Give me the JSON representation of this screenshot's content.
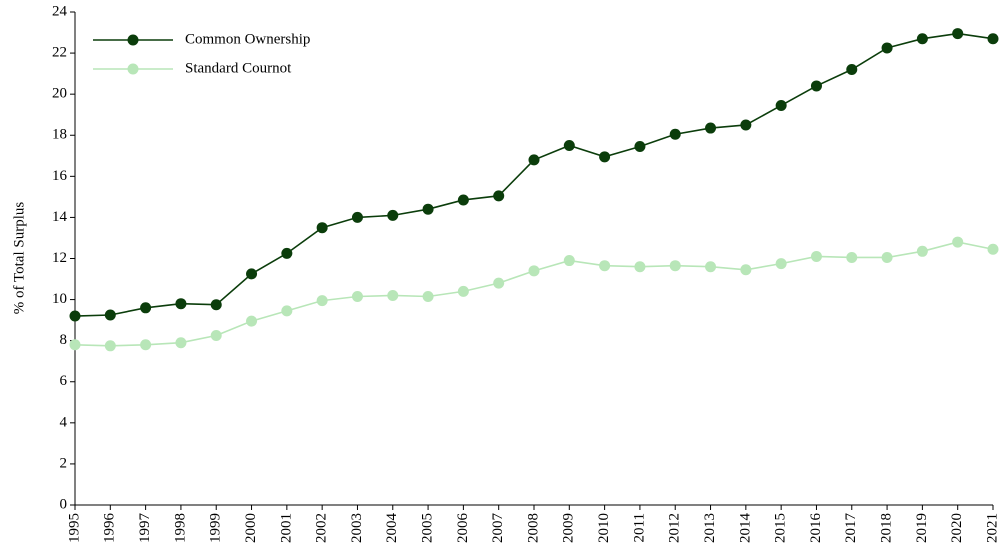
{
  "chart_data": {
    "type": "line",
    "ylabel": "% of Total Surplus",
    "x": [
      1995,
      1996,
      1997,
      1998,
      1999,
      2000,
      2001,
      2002,
      2003,
      2004,
      2005,
      2006,
      2007,
      2008,
      2009,
      2010,
      2011,
      2012,
      2013,
      2014,
      2015,
      2016,
      2017,
      2018,
      2019,
      2020,
      2021
    ],
    "series": [
      {
        "name": "Common Ownership",
        "color": "#0b3d0b",
        "values": [
          9.2,
          9.25,
          9.6,
          9.8,
          9.75,
          11.25,
          12.25,
          13.5,
          14.0,
          14.1,
          14.4,
          14.85,
          15.05,
          16.8,
          17.5,
          16.95,
          17.45,
          18.05,
          18.35,
          18.5,
          19.45,
          20.4,
          21.2,
          22.25,
          22.7,
          22.95,
          22.7
        ]
      },
      {
        "name": "Standard Cournot",
        "color": "#b8e6b8",
        "values": [
          7.8,
          7.75,
          7.8,
          7.9,
          8.25,
          8.95,
          9.45,
          9.95,
          10.15,
          10.2,
          10.15,
          10.4,
          10.8,
          11.4,
          11.9,
          11.65,
          11.6,
          11.65,
          11.6,
          11.45,
          11.75,
          12.1,
          12.05,
          12.05,
          12.35,
          12.8,
          12.45
        ]
      }
    ],
    "xlim": [
      1995,
      2021
    ],
    "xticks": [
      1995,
      1996,
      1997,
      1998,
      1999,
      2000,
      2001,
      2002,
      2003,
      2004,
      2005,
      2006,
      2007,
      2008,
      2009,
      2010,
      2011,
      2012,
      2013,
      2014,
      2015,
      2016,
      2017,
      2018,
      2019,
      2020,
      2021
    ],
    "ylim": [
      0,
      24
    ],
    "yticks": [
      0,
      2,
      4,
      6,
      8,
      10,
      12,
      14,
      16,
      18,
      20,
      22,
      24
    ],
    "grid": false,
    "legend": "upper left"
  }
}
